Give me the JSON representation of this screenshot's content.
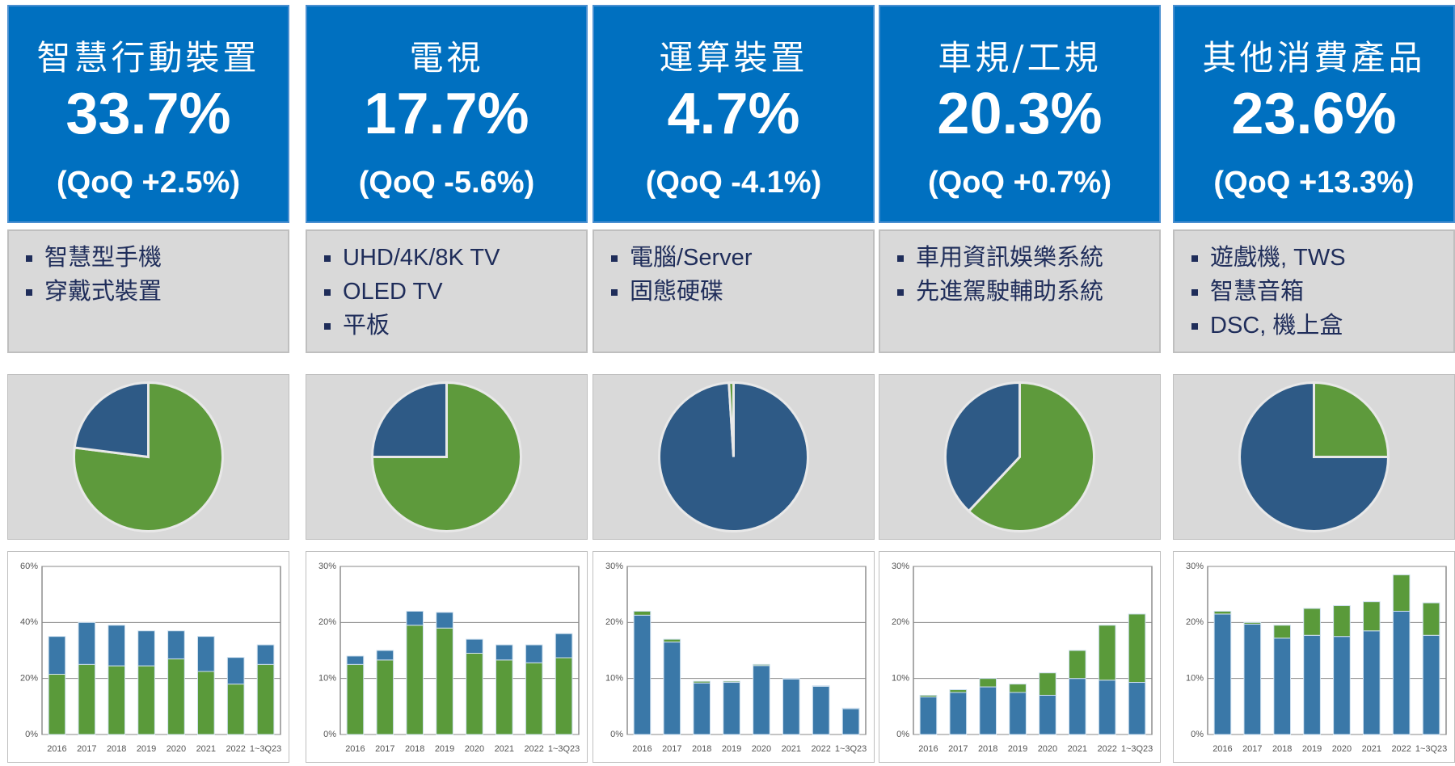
{
  "panels": [
    {
      "title": "智慧行動裝置",
      "share": "33.7%",
      "qoq": "(QoQ +2.5%)",
      "bullets": [
        "智慧型手機",
        "穿戴式裝置"
      ]
    },
    {
      "title": "電視",
      "share": "17.7%",
      "qoq": "(QoQ -5.6%)",
      "bullets": [
        "UHD/4K/8K TV",
        "OLED TV",
        "平板"
      ]
    },
    {
      "title": "運算裝置",
      "share": "4.7%",
      "qoq": "(QoQ -4.1%)",
      "bullets": [
        "電腦/Server",
        "固態硬碟"
      ]
    },
    {
      "title": "車規/工規",
      "share": "20.3%",
      "qoq": "(QoQ +0.7%)",
      "bullets": [
        "車用資訊娛樂系統",
        "先進駕駛輔助系統"
      ]
    },
    {
      "title": "其他消費產品",
      "share": "23.6%",
      "qoq": "(QoQ +13.3%)",
      "bullets": [
        "遊戲機, TWS",
        "智慧音箱",
        "DSC, 機上盒"
      ]
    }
  ],
  "chart_data": [
    {
      "type": "pie",
      "values": [
        77,
        23
      ],
      "colors": [
        "#5e9a3c",
        "#2e5a86"
      ]
    },
    {
      "type": "bar",
      "categories": [
        "2016",
        "2017",
        "2018",
        "2019",
        "2020",
        "2021",
        "2022",
        "1~3Q23"
      ],
      "series": [
        {
          "color": "#5a9a3a",
          "values": [
            21.5,
            25,
            24.5,
            24.5,
            27,
            22.5,
            18,
            25
          ]
        },
        {
          "color": "#3a78a8",
          "values": [
            13.5,
            15,
            14.5,
            12.5,
            10,
            12.5,
            9.5,
            7
          ]
        }
      ],
      "ylim": [
        0,
        60
      ],
      "yticks": [
        {
          "value": 0,
          "label": "0%"
        },
        {
          "value": 20,
          "label": "20%"
        },
        {
          "value": 40,
          "label": "40%"
        },
        {
          "value": 60,
          "label": "60%"
        }
      ],
      "grid": true
    },
    {
      "type": "pie",
      "values": [
        75,
        25
      ],
      "colors": [
        "#5e9a3c",
        "#2e5a86"
      ]
    },
    {
      "type": "bar",
      "categories": [
        "2016",
        "2017",
        "2018",
        "2019",
        "2020",
        "2021",
        "2022",
        "1~3Q23"
      ],
      "series": [
        {
          "color": "#5a9a3a",
          "values": [
            12.5,
            13.3,
            19.5,
            19,
            14.5,
            13.3,
            12.8,
            13.7
          ]
        },
        {
          "color": "#3a78a8",
          "values": [
            1.5,
            1.7,
            2.5,
            2.8,
            2.5,
            2.7,
            3.2,
            4.3
          ]
        }
      ],
      "ylim": [
        0,
        30
      ],
      "yticks": [
        {
          "value": 0,
          "label": "0%"
        },
        {
          "value": 10,
          "label": "10%"
        },
        {
          "value": 20,
          "label": "20%"
        },
        {
          "value": 30,
          "label": "30%"
        }
      ],
      "grid": true
    },
    {
      "type": "pie",
      "values": [
        99,
        1
      ],
      "colors": [
        "#2e5a86",
        "#5e9a3c"
      ]
    },
    {
      "type": "bar",
      "categories": [
        "2016",
        "2017",
        "2018",
        "2019",
        "2020",
        "2021",
        "2022",
        "1~3Q23"
      ],
      "series": [
        {
          "color": "#3a78a8",
          "values": [
            21.3,
            16.5,
            9.2,
            9.3,
            12.3,
            9.9,
            8.6,
            4.6
          ]
        },
        {
          "color": "#5a9a3a",
          "values": [
            0.7,
            0.5,
            0.3,
            0.2,
            0.2,
            0.1,
            0.1,
            0.1
          ]
        }
      ],
      "ylim": [
        0,
        30
      ],
      "yticks": [
        {
          "value": 0,
          "label": "0%"
        },
        {
          "value": 10,
          "label": "10%"
        },
        {
          "value": 20,
          "label": "20%"
        },
        {
          "value": 30,
          "label": "30%"
        }
      ],
      "grid": true
    },
    {
      "type": "pie",
      "values": [
        62,
        38
      ],
      "colors": [
        "#5e9a3c",
        "#2e5a86"
      ]
    },
    {
      "type": "bar",
      "categories": [
        "2016",
        "2017",
        "2018",
        "2019",
        "2020",
        "2021",
        "2022",
        "1~3Q23"
      ],
      "series": [
        {
          "color": "#3a78a8",
          "values": [
            6.7,
            7.5,
            8.5,
            7.5,
            7,
            10,
            9.7,
            9.3
          ]
        },
        {
          "color": "#5a9a3a",
          "values": [
            0.3,
            0.5,
            1.5,
            1.5,
            4,
            5,
            9.8,
            12.2
          ]
        }
      ],
      "ylim": [
        0,
        30
      ],
      "yticks": [
        {
          "value": 0,
          "label": "0%"
        },
        {
          "value": 10,
          "label": "10%"
        },
        {
          "value": 20,
          "label": "20%"
        },
        {
          "value": 30,
          "label": "30%"
        }
      ],
      "grid": true
    },
    {
      "type": "pie",
      "values": [
        25,
        75
      ],
      "colors": [
        "#5e9a3c",
        "#2e5a86"
      ]
    },
    {
      "type": "bar",
      "categories": [
        "2016",
        "2017",
        "2018",
        "2019",
        "2020",
        "2021",
        "2022",
        "1~3Q23"
      ],
      "series": [
        {
          "color": "#3a78a8",
          "values": [
            21.5,
            19.7,
            17.2,
            17.7,
            17.5,
            18.5,
            22,
            17.7
          ]
        },
        {
          "color": "#5a9a3a",
          "values": [
            0.5,
            0.3,
            2.3,
            4.8,
            5.5,
            5.2,
            6.5,
            5.8
          ]
        }
      ],
      "ylim": [
        0,
        30
      ],
      "yticks": [
        {
          "value": 0,
          "label": "0%"
        },
        {
          "value": 10,
          "label": "10%"
        },
        {
          "value": 20,
          "label": "20%"
        },
        {
          "value": 30,
          "label": "30%"
        }
      ],
      "grid": true
    }
  ]
}
